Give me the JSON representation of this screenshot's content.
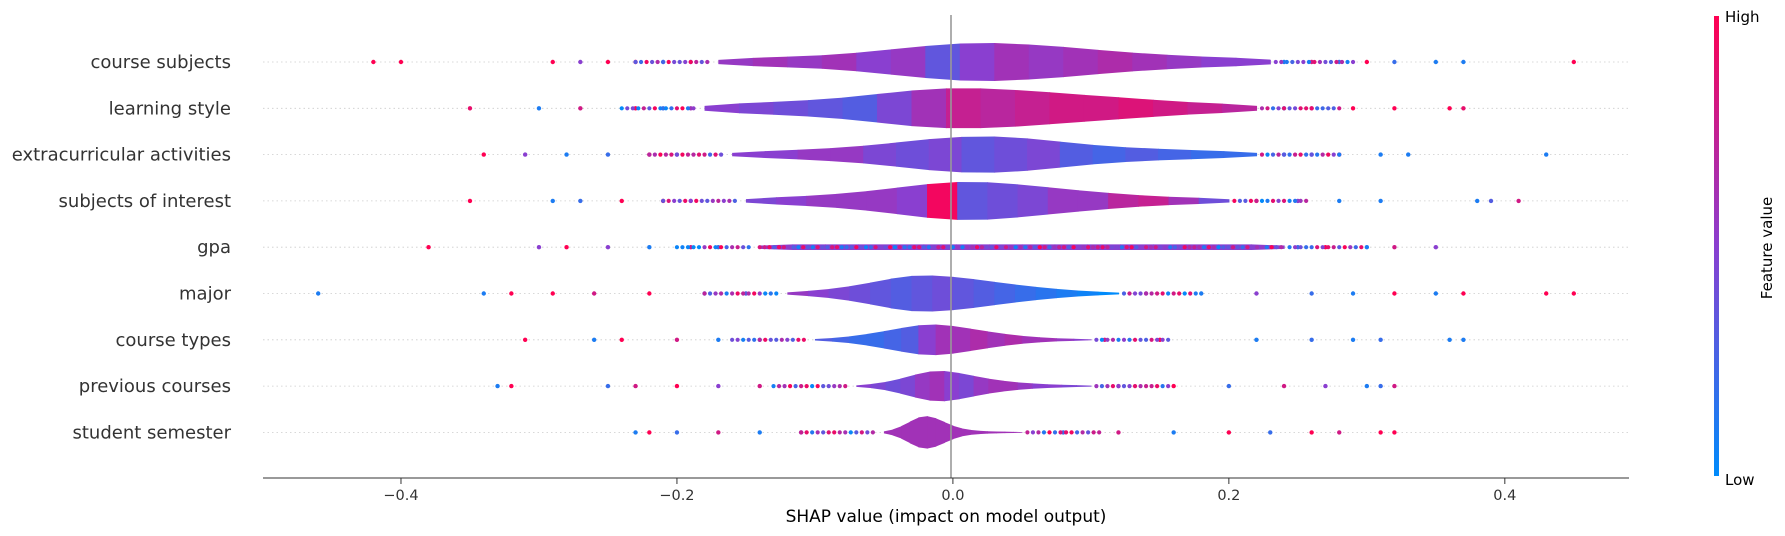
{
  "chart_data": {
    "type": "violin",
    "xlabel": "SHAP value (impact on model output)",
    "xlim": [
      -0.5,
      0.49
    ],
    "xticks": [
      {
        "value": -0.4,
        "label": "−0.4"
      },
      {
        "value": -0.2,
        "label": "−0.2"
      },
      {
        "value": 0.0,
        "label": "0.0"
      },
      {
        "value": 0.2,
        "label": "0.2"
      },
      {
        "value": 0.4,
        "label": "0.4"
      }
    ],
    "features": [
      {
        "name": "course subjects",
        "range": [
          -0.17,
          0.23
        ],
        "half_width": 0.42,
        "profile": [
          0.18,
          0.25,
          0.3,
          0.4,
          0.55,
          0.75,
          0.9,
          1.0,
          0.95,
          0.85,
          0.7,
          0.55,
          0.42,
          0.32,
          0.24,
          0.2
        ],
        "colors": [
          0.55,
          0.6,
          0.55,
          0.6,
          0.5,
          0.55,
          0.35,
          0.5,
          0.6,
          0.55,
          0.6,
          0.65,
          0.6,
          0.55,
          0.5,
          0.5
        ],
        "dots": [
          [
            -0.42,
            1
          ],
          [
            -0.4,
            1
          ],
          [
            -0.29,
            1
          ],
          [
            -0.27,
            0.5
          ],
          [
            -0.25,
            1
          ],
          [
            -0.23,
            1
          ],
          [
            -0.21,
            0.1
          ],
          [
            -0.19,
            0.3
          ],
          [
            0.24,
            0.1
          ],
          [
            0.26,
            0.8
          ],
          [
            0.28,
            0.2
          ],
          [
            0.3,
            1
          ],
          [
            0.32,
            0.2
          ],
          [
            0.35,
            0.1
          ],
          [
            0.37,
            0.1
          ],
          [
            0.45,
            1
          ]
        ]
      },
      {
        "name": "learning style",
        "range": [
          -0.18,
          0.22
        ],
        "half_width": 0.44,
        "profile": [
          0.2,
          0.28,
          0.35,
          0.45,
          0.6,
          0.8,
          0.95,
          1.0,
          0.95,
          0.85,
          0.72,
          0.6,
          0.48,
          0.36,
          0.26,
          0.2
        ],
        "colors": [
          0.5,
          0.45,
          0.4,
          0.35,
          0.3,
          0.45,
          0.6,
          0.75,
          0.7,
          0.75,
          0.8,
          0.8,
          0.85,
          0.8,
          0.75,
          0.7
        ],
        "dots": [
          [
            -0.35,
            0.9
          ],
          [
            -0.3,
            0.1
          ],
          [
            -0.27,
            0.8
          ],
          [
            -0.23,
            1
          ],
          [
            -0.21,
            0.2
          ],
          [
            -0.19,
            0.6
          ],
          [
            0.24,
            0.2
          ],
          [
            0.26,
            0.8
          ],
          [
            0.29,
            1
          ],
          [
            0.32,
            1
          ],
          [
            0.36,
            1
          ],
          [
            0.37,
            0.9
          ]
        ]
      },
      {
        "name": "extracurricular activities",
        "range": [
          -0.16,
          0.22
        ],
        "half_width": 0.4,
        "profile": [
          0.15,
          0.22,
          0.3,
          0.4,
          0.55,
          0.75,
          0.92,
          1.0,
          0.95,
          0.8,
          0.6,
          0.45,
          0.35,
          0.28,
          0.22,
          0.15
        ],
        "colors": [
          0.5,
          0.5,
          0.55,
          0.55,
          0.45,
          0.4,
          0.45,
          0.35,
          0.4,
          0.45,
          0.3,
          0.25,
          0.3,
          0.25,
          0.2,
          0.2
        ],
        "dots": [
          [
            -0.34,
            1
          ],
          [
            -0.31,
            0.5
          ],
          [
            -0.28,
            0.1
          ],
          [
            -0.25,
            0.2
          ],
          [
            -0.22,
            1
          ],
          [
            -0.2,
            0.5
          ],
          [
            0.24,
            0.1
          ],
          [
            0.26,
            0.3
          ],
          [
            0.28,
            0.8
          ],
          [
            0.31,
            0.1
          ],
          [
            0.33,
            0.1
          ],
          [
            0.43,
            0.1
          ]
        ]
      },
      {
        "name": "subjects of interest",
        "range": [
          -0.15,
          0.2
        ],
        "half_width": 0.42,
        "profile": [
          0.15,
          0.22,
          0.3,
          0.42,
          0.58,
          0.78,
          0.95,
          1.0,
          0.92,
          0.78,
          0.62,
          0.48,
          0.35,
          0.25,
          0.18,
          0.14
        ],
        "colors": [
          0.45,
          0.5,
          0.55,
          0.55,
          0.55,
          0.5,
          0.95,
          0.35,
          0.4,
          0.45,
          0.55,
          0.55,
          0.7,
          0.75,
          0.6,
          0.4
        ],
        "dots": [
          [
            -0.35,
            1
          ],
          [
            -0.29,
            0.1
          ],
          [
            -0.27,
            0.2
          ],
          [
            -0.24,
            1
          ],
          [
            -0.21,
            1
          ],
          [
            -0.19,
            0.6
          ],
          [
            0.22,
            1
          ],
          [
            0.25,
            0.5
          ],
          [
            0.28,
            0.1
          ],
          [
            0.31,
            0.1
          ],
          [
            0.38,
            0.1
          ],
          [
            0.39,
            0.3
          ],
          [
            0.41,
            0.8
          ]
        ]
      },
      {
        "name": "gpa",
        "range": [
          -0.14,
          0.24
        ],
        "half_width": 0.06,
        "profile": [
          1,
          1,
          1,
          1,
          1,
          1,
          1,
          1,
          1,
          1,
          1,
          1,
          1,
          1,
          1,
          1
        ],
        "colors": [
          0.5,
          0.5,
          0.5,
          0.5,
          0.5,
          0.5,
          0.5,
          0.5,
          0.5,
          0.5,
          0.5,
          0.5,
          0.5,
          0.5,
          0.5,
          0.5
        ],
        "dots": [
          [
            -0.38,
            1
          ],
          [
            -0.3,
            0.5
          ],
          [
            -0.28,
            1
          ],
          [
            -0.25,
            0.5
          ],
          [
            -0.22,
            0.1
          ],
          [
            -0.19,
            0.8
          ],
          [
            -0.17,
            0.2
          ],
          [
            0.25,
            0.2
          ],
          [
            0.27,
            1
          ],
          [
            0.3,
            0.1
          ],
          [
            0.32,
            0.8
          ],
          [
            0.35,
            0.5
          ]
        ]
      },
      {
        "name": "major",
        "range": [
          -0.12,
          0.12
        ],
        "half_width": 0.4,
        "profile": [
          0.1,
          0.18,
          0.3,
          0.48,
          0.7,
          0.9,
          1.0,
          0.95,
          0.85,
          0.7,
          0.55,
          0.42,
          0.3,
          0.2,
          0.12,
          0.08
        ],
        "colors": [
          0.55,
          0.5,
          0.45,
          0.4,
          0.35,
          0.3,
          0.35,
          0.4,
          0.35,
          0.3,
          0.25,
          0.2,
          0.15,
          0.1,
          0.05,
          0.0
        ],
        "dots": [
          [
            -0.46,
            0.1
          ],
          [
            -0.34,
            0.1
          ],
          [
            -0.32,
            1
          ],
          [
            -0.29,
            1
          ],
          [
            -0.26,
            0.8
          ],
          [
            -0.22,
            1
          ],
          [
            -0.18,
            0.2
          ],
          [
            -0.15,
            0.3
          ],
          [
            0.14,
            0.6
          ],
          [
            0.18,
            0.1
          ],
          [
            0.22,
            0.5
          ],
          [
            0.26,
            0.2
          ],
          [
            0.29,
            0.1
          ],
          [
            0.32,
            1
          ],
          [
            0.35,
            0.1
          ],
          [
            0.37,
            1
          ],
          [
            0.43,
            1
          ],
          [
            0.45,
            1
          ]
        ]
      },
      {
        "name": "course types",
        "range": [
          -0.1,
          0.1
        ],
        "half_width": 0.34,
        "profile": [
          0.08,
          0.15,
          0.28,
          0.45,
          0.65,
          0.85,
          1.0,
          0.95,
          0.8,
          0.62,
          0.45,
          0.3,
          0.2,
          0.12,
          0.08,
          0.05
        ],
        "colors": [
          0.3,
          0.25,
          0.2,
          0.2,
          0.25,
          0.3,
          0.5,
          0.6,
          0.6,
          0.65,
          0.6,
          0.65,
          0.6,
          0.6,
          0.55,
          0.5
        ],
        "dots": [
          [
            -0.31,
            1
          ],
          [
            -0.26,
            0.1
          ],
          [
            -0.24,
            1
          ],
          [
            -0.2,
            0.8
          ],
          [
            -0.17,
            0.1
          ],
          [
            -0.14,
            0.2
          ],
          [
            0.11,
            0.8
          ],
          [
            0.15,
            1
          ],
          [
            0.22,
            0.1
          ],
          [
            0.26,
            0.2
          ],
          [
            0.29,
            0.1
          ],
          [
            0.31,
            0.2
          ],
          [
            0.36,
            0.1
          ],
          [
            0.37,
            0.1
          ]
        ]
      },
      {
        "name": "previous courses",
        "range": [
          -0.07,
          0.1
        ],
        "half_width": 0.34,
        "profile": [
          0.08,
          0.18,
          0.35,
          0.6,
          0.85,
          1.0,
          0.92,
          0.75,
          0.55,
          0.4,
          0.28,
          0.2,
          0.14,
          0.1,
          0.07,
          0.05
        ],
        "colors": [
          0.5,
          0.45,
          0.4,
          0.45,
          0.55,
          0.6,
          0.5,
          0.45,
          0.55,
          0.6,
          0.6,
          0.55,
          0.5,
          0.5,
          0.45,
          0.45
        ],
        "dots": [
          [
            -0.33,
            0.1
          ],
          [
            -0.32,
            1
          ],
          [
            -0.25,
            0.2
          ],
          [
            -0.23,
            0.8
          ],
          [
            -0.2,
            1
          ],
          [
            -0.17,
            0.5
          ],
          [
            -0.14,
            0.8
          ],
          [
            0.12,
            0.5
          ],
          [
            0.16,
            1
          ],
          [
            0.2,
            0.2
          ],
          [
            0.24,
            0.8
          ],
          [
            0.27,
            0.5
          ],
          [
            0.3,
            0.1
          ],
          [
            0.31,
            0.2
          ],
          [
            0.32,
            0.8
          ]
        ]
      },
      {
        "name": "student semester",
        "range": [
          -0.05,
          0.05
        ],
        "half_width": 0.36,
        "profile": [
          0.1,
          0.25,
          0.5,
          0.8,
          1.0,
          0.95,
          0.75,
          0.5,
          0.3,
          0.18,
          0.12,
          0.08,
          0.06,
          0.05,
          0.04,
          0.03
        ],
        "colors": [
          0.6,
          0.6,
          0.6,
          0.6,
          0.6,
          0.6,
          0.6,
          0.6,
          0.6,
          0.6,
          0.6,
          0.6,
          0.6,
          0.6,
          0.6,
          0.6
        ],
        "dots": [
          [
            -0.23,
            0.1
          ],
          [
            -0.22,
            1
          ],
          [
            -0.2,
            0.2
          ],
          [
            -0.17,
            0.8
          ],
          [
            -0.14,
            0.1
          ],
          [
            -0.11,
            0.5
          ],
          [
            0.08,
            0.2
          ],
          [
            0.12,
            0.8
          ],
          [
            0.16,
            0.1
          ],
          [
            0.2,
            1
          ],
          [
            0.23,
            0.2
          ],
          [
            0.26,
            1
          ],
          [
            0.28,
            0.8
          ],
          [
            0.31,
            1
          ],
          [
            0.32,
            1
          ]
        ]
      }
    ]
  },
  "colorbar": {
    "title": "Feature value",
    "high_label": "High",
    "low_label": "Low",
    "color_low": "#008bfb",
    "color_high": "#ff0052"
  }
}
